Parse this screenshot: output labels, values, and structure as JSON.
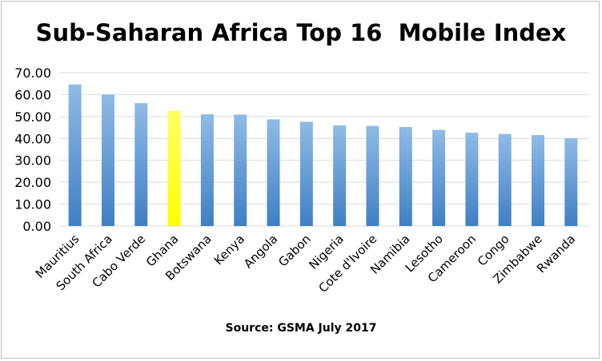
{
  "chart_data": {
    "type": "bar",
    "title": "Sub-Saharan Africa Top 16  Mobile Index",
    "source": "Source: GSMA July 2017",
    "categories": [
      "Mauritius",
      "South Africa",
      "Cabo Verde",
      "Ghana",
      "Botswana",
      "Kenya",
      "Angola",
      "Gabon",
      "Nigeria",
      "Cote d'Ivoire",
      "Namibia",
      "Lesotho",
      "Cameroon",
      "Congo",
      "Zimbabwe",
      "Rwanda"
    ],
    "values": [
      64.6,
      60.0,
      56.1,
      52.6,
      51.0,
      50.9,
      48.7,
      47.6,
      45.9,
      45.7,
      45.2,
      43.9,
      42.6,
      42.0,
      41.5,
      40.1
    ],
    "highlight_category": "Ghana",
    "ylim": [
      0,
      70
    ],
    "yticks": [
      "0.00",
      "10.00",
      "20.00",
      "30.00",
      "40.00",
      "50.00",
      "60.00",
      "70.00"
    ],
    "grid": true,
    "legend": "none",
    "colors": {
      "bar": "#5b9bd5",
      "highlight": "#ffff00",
      "grid": "#d9d9d9",
      "axis": "#d9d9d9"
    }
  }
}
